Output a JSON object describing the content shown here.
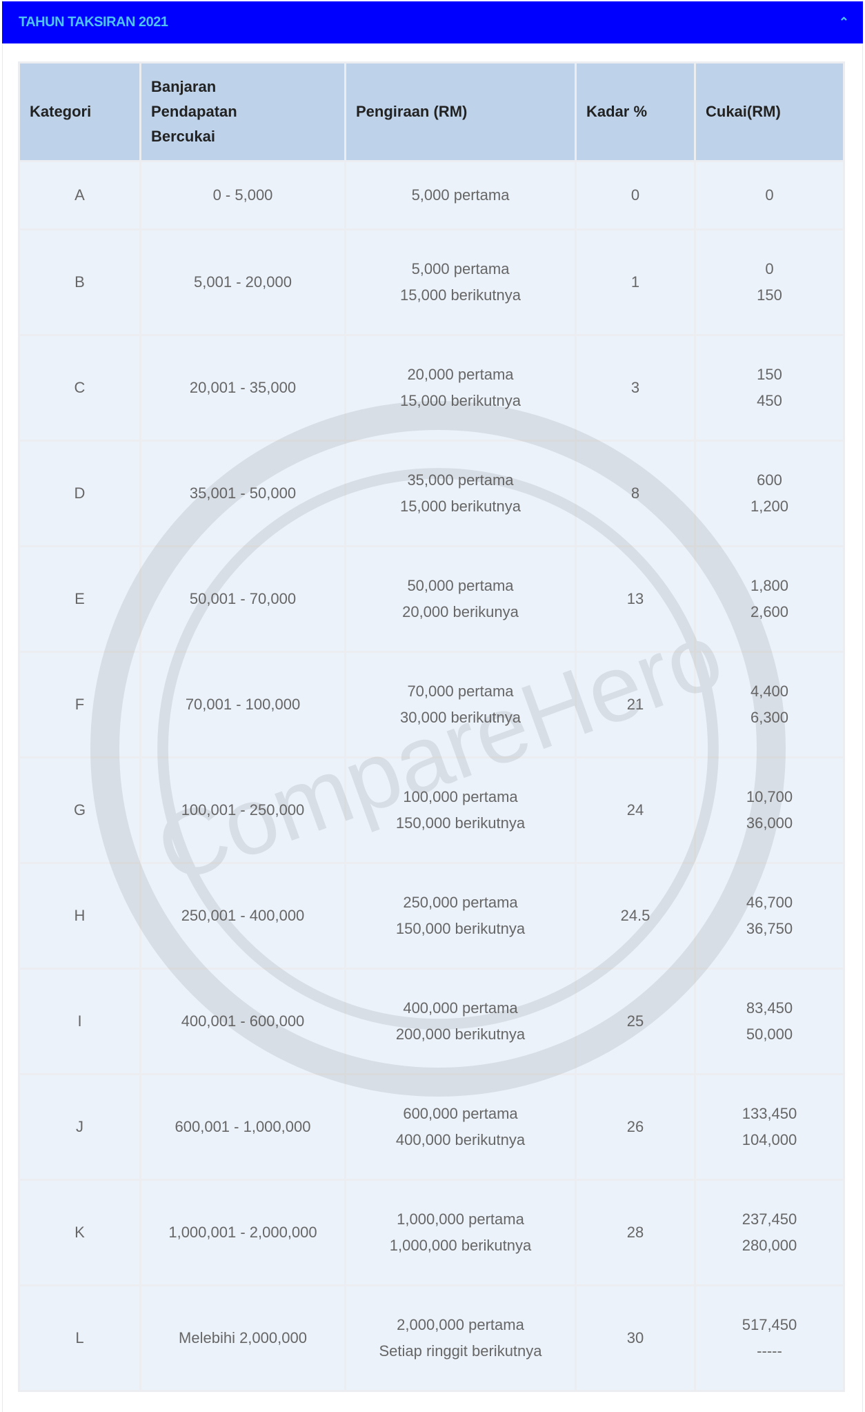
{
  "header": {
    "title": "TAHUN TAKSIRAN 2021",
    "toggle_icon": "chevron-up-icon"
  },
  "colors": {
    "header_bg": "#0000ff",
    "header_text": "#4fc3f7",
    "table_head_bg": "#bed3e9",
    "row_bg": "#ebf2fa"
  },
  "table": {
    "columns": [
      "Kategori",
      "Banjaran Pendapatan Bercukai",
      "Pengiraan (RM)",
      "Kadar %",
      "Cukai(RM)"
    ],
    "rows": [
      {
        "kategori": "A",
        "banjaran": "0 - 5,000",
        "pengiraan": [
          "5,000 pertama"
        ],
        "kadar": "0",
        "cukai": [
          "0"
        ]
      },
      {
        "kategori": "B",
        "banjaran": "5,001 - 20,000",
        "pengiraan": [
          "5,000 pertama",
          "15,000 berikutnya"
        ],
        "kadar": "1",
        "cukai": [
          "0",
          "150"
        ]
      },
      {
        "kategori": "C",
        "banjaran": "20,001 - 35,000",
        "pengiraan": [
          "20,000 pertama",
          "15,000 berikutnya"
        ],
        "kadar": "3",
        "cukai": [
          "150",
          "450"
        ]
      },
      {
        "kategori": "D",
        "banjaran": "35,001 - 50,000",
        "pengiraan": [
          "35,000 pertama",
          "15,000 berikutnya"
        ],
        "kadar": "8",
        "cukai": [
          "600",
          "1,200"
        ]
      },
      {
        "kategori": "E",
        "banjaran": "50,001 - 70,000",
        "pengiraan": [
          "50,000 pertama",
          "20,000 berikunya"
        ],
        "kadar": "13",
        "cukai": [
          "1,800",
          "2,600"
        ]
      },
      {
        "kategori": "F",
        "banjaran": "70,001 - 100,000",
        "pengiraan": [
          "70,000 pertama",
          "30,000 berikutnya"
        ],
        "kadar": "21",
        "cukai": [
          "4,400",
          "6,300"
        ]
      },
      {
        "kategori": "G",
        "banjaran": "100,001 - 250,000",
        "pengiraan": [
          "100,000 pertama",
          "150,000 berikutnya"
        ],
        "kadar": "24",
        "cukai": [
          "10,700",
          "36,000"
        ]
      },
      {
        "kategori": "H",
        "banjaran": "250,001 - 400,000",
        "pengiraan": [
          "250,000 pertama",
          "150,000 berikutnya"
        ],
        "kadar": "24.5",
        "cukai": [
          "46,700",
          "36,750"
        ]
      },
      {
        "kategori": "I",
        "banjaran": "400,001 - 600,000",
        "pengiraan": [
          "400,000 pertama",
          "200,000 berikutnya"
        ],
        "kadar": "25",
        "cukai": [
          "83,450",
          "50,000"
        ]
      },
      {
        "kategori": "J",
        "banjaran": "600,001 - 1,000,000",
        "pengiraan": [
          "600,000 pertama",
          "400,000 berikutnya"
        ],
        "kadar": "26",
        "cukai": [
          "133,450",
          "104,000"
        ]
      },
      {
        "kategori": "K",
        "banjaran": "1,000,001 - 2,000,000",
        "pengiraan": [
          "1,000,000 pertama",
          "1,000,000 berikutnya"
        ],
        "kadar": "28",
        "cukai": [
          "237,450",
          "280,000"
        ]
      },
      {
        "kategori": "L",
        "banjaran": "Melebihi 2,000,000",
        "pengiraan": [
          "2,000,000 pertama",
          "Setiap ringgit berikutnya"
        ],
        "kadar": "30",
        "cukai": [
          "517,450",
          "-----"
        ]
      }
    ]
  },
  "watermark": "CompareHero.my"
}
